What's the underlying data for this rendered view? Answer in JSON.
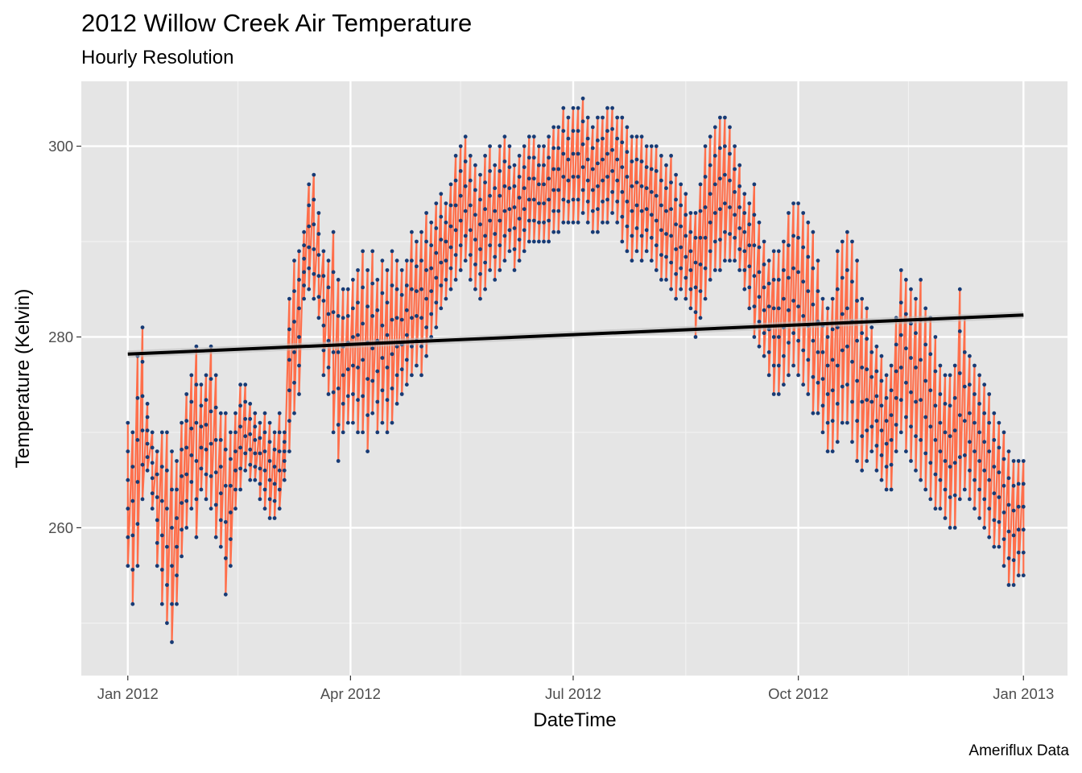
{
  "chart_data": {
    "type": "line",
    "title": "2012 Willow Creek Air Temperature",
    "subtitle": "Hourly Resolution",
    "caption": "Ameriflux Data",
    "xlabel": "DateTime",
    "ylabel": "Temperature (Kelvin)",
    "x_tick_labels": [
      "Jan 2012",
      "Apr 2012",
      "Jul 2012",
      "Oct 2012",
      "Jan 2013"
    ],
    "x_ticks": [
      "2012-01-01",
      "2012-04-01",
      "2012-07-01",
      "2012-10-01",
      "2013-01-01"
    ],
    "x_minor_ticks": [
      "2012-02-15",
      "2012-05-16",
      "2012-08-16",
      "2012-11-15"
    ],
    "xlim": [
      "2011-12-13",
      "2013-01-19"
    ],
    "y_tick_labels": [
      "260",
      "280",
      "300"
    ],
    "y_ticks": [
      260,
      280,
      300
    ],
    "y_minor_ticks": [
      250,
      270,
      290
    ],
    "ylim": [
      244.5,
      306.8
    ],
    "grid": true,
    "legend": "none",
    "series": [
      {
        "type": "line+points",
        "line_color": "#ff6f4b",
        "point_color": "#173b75",
        "x": [
          "2012-01-01",
          "2012-01-03",
          "2012-01-05",
          "2012-01-07",
          "2012-01-09",
          "2012-01-11",
          "2012-01-13",
          "2012-01-15",
          "2012-01-17",
          "2012-01-19",
          "2012-01-21",
          "2012-01-23",
          "2012-01-25",
          "2012-01-27",
          "2012-01-29",
          "2012-01-31",
          "2012-02-02",
          "2012-02-04",
          "2012-02-06",
          "2012-02-08",
          "2012-02-10",
          "2012-02-12",
          "2012-02-14",
          "2012-02-16",
          "2012-02-18",
          "2012-02-20",
          "2012-02-22",
          "2012-02-24",
          "2012-02-26",
          "2012-02-28",
          "2012-03-01",
          "2012-03-03",
          "2012-03-05",
          "2012-03-07",
          "2012-03-09",
          "2012-03-11",
          "2012-03-13",
          "2012-03-15",
          "2012-03-17",
          "2012-03-19",
          "2012-03-21",
          "2012-03-23",
          "2012-03-25",
          "2012-03-27",
          "2012-03-29",
          "2012-03-31",
          "2012-04-02",
          "2012-04-04",
          "2012-04-06",
          "2012-04-08",
          "2012-04-10",
          "2012-04-12",
          "2012-04-14",
          "2012-04-16",
          "2012-04-18",
          "2012-04-20",
          "2012-04-22",
          "2012-04-24",
          "2012-04-26",
          "2012-04-28",
          "2012-04-30",
          "2012-05-02",
          "2012-05-04",
          "2012-05-06",
          "2012-05-08",
          "2012-05-10",
          "2012-05-12",
          "2012-05-14",
          "2012-05-16",
          "2012-05-18",
          "2012-05-20",
          "2012-05-22",
          "2012-05-24",
          "2012-05-26",
          "2012-05-28",
          "2012-05-30",
          "2012-06-01",
          "2012-06-03",
          "2012-06-05",
          "2012-06-07",
          "2012-06-09",
          "2012-06-11",
          "2012-06-13",
          "2012-06-15",
          "2012-06-17",
          "2012-06-19",
          "2012-06-21",
          "2012-06-23",
          "2012-06-25",
          "2012-06-27",
          "2012-06-29",
          "2012-07-01",
          "2012-07-03",
          "2012-07-05",
          "2012-07-07",
          "2012-07-09",
          "2012-07-11",
          "2012-07-13",
          "2012-07-15",
          "2012-07-17",
          "2012-07-19",
          "2012-07-21",
          "2012-07-23",
          "2012-07-25",
          "2012-07-27",
          "2012-07-29",
          "2012-07-31",
          "2012-08-02",
          "2012-08-04",
          "2012-08-06",
          "2012-08-08",
          "2012-08-10",
          "2012-08-12",
          "2012-08-14",
          "2012-08-16",
          "2012-08-18",
          "2012-08-20",
          "2012-08-22",
          "2012-08-24",
          "2012-08-26",
          "2012-08-28",
          "2012-08-30",
          "2012-09-01",
          "2012-09-03",
          "2012-09-05",
          "2012-09-07",
          "2012-09-09",
          "2012-09-11",
          "2012-09-13",
          "2012-09-15",
          "2012-09-17",
          "2012-09-19",
          "2012-09-21",
          "2012-09-23",
          "2012-09-25",
          "2012-09-27",
          "2012-09-29",
          "2012-10-01",
          "2012-10-03",
          "2012-10-05",
          "2012-10-07",
          "2012-10-09",
          "2012-10-11",
          "2012-10-13",
          "2012-10-15",
          "2012-10-17",
          "2012-10-19",
          "2012-10-21",
          "2012-10-23",
          "2012-10-25",
          "2012-10-27",
          "2012-10-29",
          "2012-10-31",
          "2012-11-02",
          "2012-11-04",
          "2012-11-06",
          "2012-11-08",
          "2012-11-10",
          "2012-11-12",
          "2012-11-14",
          "2012-11-16",
          "2012-11-18",
          "2012-11-20",
          "2012-11-22",
          "2012-11-24",
          "2012-11-26",
          "2012-11-28",
          "2012-11-30",
          "2012-12-02",
          "2012-12-04",
          "2012-12-06",
          "2012-12-08",
          "2012-12-10",
          "2012-12-12",
          "2012-12-14",
          "2012-12-16",
          "2012-12-18",
          "2012-12-20",
          "2012-12-22",
          "2012-12-24",
          "2012-12-26",
          "2012-12-28",
          "2012-12-30",
          "2013-01-01"
        ],
        "y_max": [
          271,
          270,
          278,
          281,
          273,
          270,
          268,
          270,
          270,
          268,
          267,
          271,
          274,
          276,
          279,
          275,
          276,
          279,
          276,
          272,
          272,
          270,
          272,
          275,
          275,
          273,
          272,
          271,
          272,
          271,
          270,
          272,
          270,
          284,
          288,
          289,
          291,
          296,
          297,
          293,
          289,
          288,
          291,
          286,
          285,
          285,
          286,
          287,
          289,
          287,
          289,
          286,
          288,
          287,
          289,
          288,
          287,
          288,
          291,
          290,
          291,
          293,
          292,
          294,
          295,
          294,
          296,
          299,
          300,
          301,
          299,
          298,
          297,
          299,
          300,
          298,
          300,
          301,
          300,
          298,
          299,
          300,
          301,
          301,
          300,
          300,
          301,
          302,
          302,
          304,
          303,
          304,
          304,
          305,
          303,
          302,
          303,
          303,
          304,
          304,
          303,
          303,
          302,
          301,
          301,
          301,
          300,
          300,
          300,
          299,
          298,
          299,
          297,
          296,
          295,
          293,
          293,
          296,
          300,
          301,
          302,
          303,
          303,
          302,
          300,
          298,
          295,
          294,
          296,
          292,
          290,
          288,
          289,
          289,
          290,
          293,
          294,
          294,
          293,
          292,
          291,
          288,
          284,
          283,
          284,
          289,
          290,
          291,
          290,
          288,
          284,
          283,
          281,
          279,
          278,
          276,
          277,
          282,
          287,
          286,
          285,
          284,
          286,
          283,
          282,
          280,
          277,
          276,
          276,
          277,
          285,
          282,
          278,
          277,
          276,
          275,
          274,
          272,
          271,
          270,
          268,
          267,
          267,
          267,
          266,
          266
        ],
        "y_min": [
          256,
          252,
          256,
          263,
          266,
          262,
          256,
          252,
          250,
          248,
          252,
          257,
          260,
          262,
          259,
          264,
          263,
          262,
          259,
          258,
          253,
          256,
          262,
          264,
          266,
          265,
          265,
          263,
          262,
          261,
          261,
          262,
          265,
          268,
          272,
          274,
          284,
          285,
          284,
          282,
          276,
          274,
          270,
          267,
          270,
          271,
          271,
          270,
          270,
          268,
          272,
          270,
          271,
          270,
          271,
          273,
          274,
          275,
          276,
          277,
          276,
          278,
          280,
          281,
          283,
          284,
          285,
          286,
          287,
          288,
          286,
          285,
          284,
          285,
          287,
          286,
          287,
          288,
          289,
          287,
          288,
          289,
          290,
          290,
          290,
          290,
          290,
          291,
          291,
          292,
          292,
          292,
          292,
          293,
          292,
          291,
          291,
          292,
          292,
          293,
          292,
          290,
          289,
          288,
          289,
          288,
          289,
          288,
          287,
          286,
          286,
          285,
          284,
          285,
          284,
          283,
          280,
          282,
          284,
          286,
          287,
          287,
          288,
          288,
          288,
          287,
          285,
          283,
          280,
          279,
          278,
          276,
          274,
          274,
          275,
          276,
          277,
          276,
          275,
          274,
          272,
          272,
          270,
          268,
          268,
          269,
          271,
          271,
          269,
          267,
          266,
          267,
          268,
          266,
          265,
          264,
          264,
          268,
          270,
          268,
          267,
          266,
          265,
          264,
          263,
          262,
          262,
          261,
          260,
          260,
          263,
          264,
          263,
          262,
          261,
          260,
          259,
          258,
          258,
          256,
          254,
          254,
          255,
          255,
          256,
          256
        ]
      },
      {
        "name": "",
        "type": "linear-trend",
        "color": "#000000",
        "x": [
          "2012-01-01",
          "2013-01-01"
        ],
        "y": [
          278.2,
          282.3
        ]
      }
    ]
  }
}
